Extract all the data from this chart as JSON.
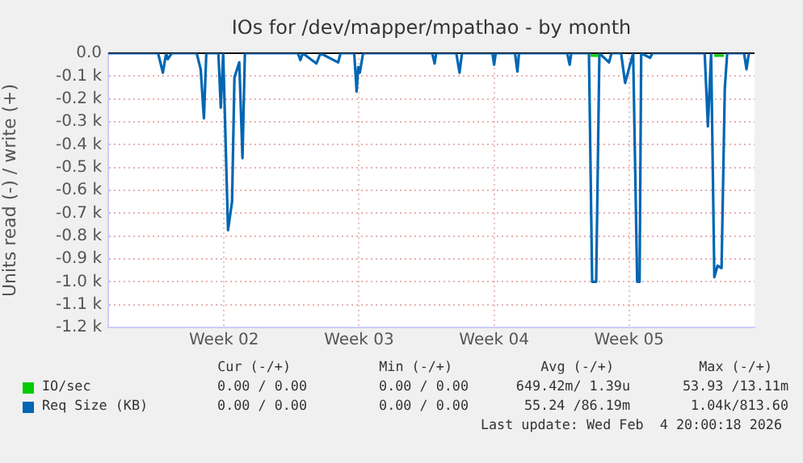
{
  "chart_data": {
    "type": "line",
    "title": "IOs for /dev/mapper/mpathao - by month",
    "ylabel": "Units read (-) / write (+)",
    "xlim": [
      "2026-01-02T08:00",
      "2026-02-04T20:00"
    ],
    "xticks": [
      {
        "value": "2026-01-08T08:00",
        "label": "Week 02"
      },
      {
        "value": "2026-01-15T08:00",
        "label": "Week 03"
      },
      {
        "value": "2026-01-22T08:00",
        "label": "Week 04"
      },
      {
        "value": "2026-01-29T08:00",
        "label": "Week 05"
      }
    ],
    "ylim": [
      -1200,
      0
    ],
    "yticks": [
      {
        "value": -1200,
        "label": "-1.2 k"
      },
      {
        "value": -1100,
        "label": "-1.1 k"
      },
      {
        "value": -1000,
        "label": "-1.0 k"
      },
      {
        "value": -900,
        "label": "-0.9 k"
      },
      {
        "value": -800,
        "label": "-0.8 k"
      },
      {
        "value": -700,
        "label": "-0.7 k"
      },
      {
        "value": -600,
        "label": "-0.6 k"
      },
      {
        "value": -500,
        "label": "-0.5 k"
      },
      {
        "value": -400,
        "label": "-0.4 k"
      },
      {
        "value": -300,
        "label": "-0.3 k"
      },
      {
        "value": -200,
        "label": "-0.2 k"
      },
      {
        "value": -100,
        "label": "-0.1 k"
      },
      {
        "value": 0,
        "label": "0.0"
      }
    ],
    "grid": true,
    "legend": "bottom",
    "marker": "none",
    "ref_lines": [
      {
        "axis": "y",
        "value": 0,
        "color": "#000000"
      }
    ],
    "series": [
      {
        "name": "IO/sec",
        "color": "#00cc00",
        "x": [
          "2026-01-27T08:00",
          "2026-01-27T18:00",
          "2026-01-31T12:00",
          "2026-02-02T18:00",
          "2026-02-03T06:00"
        ],
        "values": [
          -10,
          -10,
          null,
          -10,
          -10
        ]
      },
      {
        "name": "Req Size (KB)",
        "color": "#0066b3",
        "x": [
          "2026-01-02T08:00",
          "2026-01-04T22:00",
          "2026-01-05T04:00",
          "2026-01-05T08:00",
          "2026-01-05T10:00",
          "2026-01-05T15:00",
          "2026-01-06T22:00",
          "2026-01-07T03:00",
          "2026-01-07T07:00",
          "2026-01-07T10:00",
          "2026-01-08T01:00",
          "2026-01-08T04:00",
          "2026-01-08T07:00",
          "2026-01-08T13:00",
          "2026-01-08T18:00",
          "2026-01-08T21:00",
          "2026-01-09T03:00",
          "2026-01-09T07:00",
          "2026-01-09T10:00",
          "2026-01-12T04:00",
          "2026-01-12T07:00",
          "2026-01-12T10:00",
          "2026-01-13T03:00",
          "2026-01-13T08:00",
          "2026-01-14T06:00",
          "2026-01-14T09:00",
          "2026-01-15T02:00",
          "2026-01-15T05:00",
          "2026-01-15T07:00",
          "2026-01-15T09:00",
          "2026-01-15T13:00",
          "2026-01-19T03:00",
          "2026-01-19T06:00",
          "2026-01-19T08:00",
          "2026-01-20T09:00",
          "2026-01-20T13:00",
          "2026-01-20T16:00",
          "2026-01-22T06:00",
          "2026-01-22T08:00",
          "2026-01-22T10:00",
          "2026-01-23T10:00",
          "2026-01-23T13:00",
          "2026-01-23T15:00",
          "2026-01-26T03:00",
          "2026-01-26T06:00",
          "2026-01-26T08:00",
          "2026-01-27T06:00",
          "2026-01-27T10:00",
          "2026-01-27T15:00",
          "2026-01-27T19:00",
          "2026-01-28T07:00",
          "2026-01-28T10:00",
          "2026-01-28T22:00",
          "2026-01-29T03:00",
          "2026-01-29T13:00",
          "2026-01-29T18:00",
          "2026-01-29T21:00",
          "2026-01-29T23:00",
          "2026-01-30T10:00",
          "2026-01-30T13:00",
          "2026-02-02T06:00",
          "2026-02-02T10:00",
          "2026-02-02T14:00",
          "2026-02-02T18:00",
          "2026-02-02T22:00",
          "2026-02-03T03:00",
          "2026-02-03T07:00",
          "2026-02-03T10:00",
          "2026-02-04T07:00",
          "2026-02-04T10:00",
          "2026-02-04T13:00"
        ],
        "values": [
          0,
          0,
          -85,
          0,
          -26,
          0,
          0,
          -70,
          -285,
          0,
          0,
          -238,
          0,
          -774,
          -650,
          -106,
          -40,
          -459,
          0,
          0,
          -30,
          0,
          -45,
          0,
          -40,
          0,
          0,
          -167,
          -60,
          -85,
          0,
          0,
          -45,
          0,
          0,
          -85,
          0,
          0,
          -50,
          0,
          0,
          -80,
          0,
          0,
          -50,
          0,
          0,
          -1000,
          -1000,
          0,
          -40,
          0,
          0,
          -130,
          0,
          -1000,
          -1000,
          0,
          -20,
          0,
          0,
          -320,
          0,
          -980,
          -930,
          -940,
          -155,
          0,
          0,
          -70,
          0
        ]
      }
    ],
    "annotations": [
      "Cur (-/+)",
      "Min (-/+)",
      "Avg (-/+)",
      "Max (-/+)",
      "0.00 / 0.00",
      "0.00 / 0.00",
      "649.42m/ 1.39u",
      "53.93 /13.11m",
      "0.00 / 0.00",
      "0.00 / 0.00",
      "55.24 /86.19m",
      "1.04k/813.60",
      "Last update: Wed Feb  4 20:00:18 2026"
    ]
  }
}
